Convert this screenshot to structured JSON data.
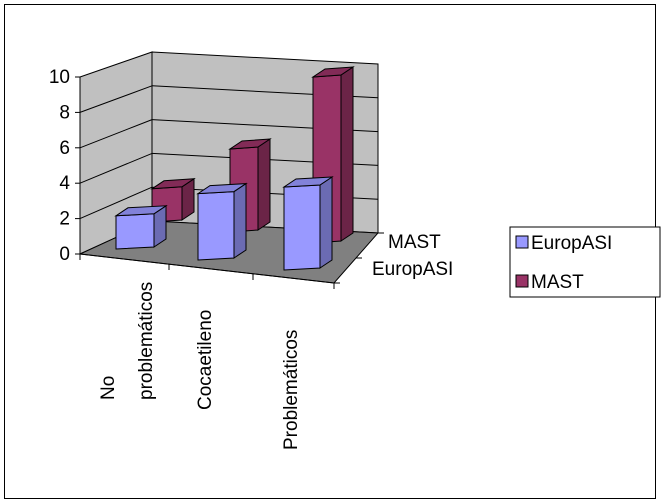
{
  "chart_data": {
    "type": "bar",
    "subtype": "3d-clustered",
    "title": "",
    "xlabel": "",
    "ylabel": "",
    "categories": [
      "No problemáticos",
      "Cocaetileno",
      "Problemáticos"
    ],
    "series": [
      {
        "name": "EuropASI",
        "values": [
          2,
          4,
          5
        ],
        "color": "#9999ff"
      },
      {
        "name": "MAST",
        "values": [
          2,
          5,
          10
        ],
        "color": "#993366"
      }
    ],
    "ylim": [
      0,
      10
    ],
    "yticks": [
      "0",
      "2",
      "4",
      "6",
      "8",
      "10"
    ],
    "grid": true,
    "legend": "right",
    "legend_items": [
      "EuropASI",
      "MAST"
    ],
    "depth_labels": [
      "MAST",
      "EuropASI"
    ],
    "category_labels": [
      [
        "No",
        "problemáticos"
      ],
      [
        "Cocaetileno"
      ],
      [
        "Problemáticos"
      ]
    ]
  }
}
